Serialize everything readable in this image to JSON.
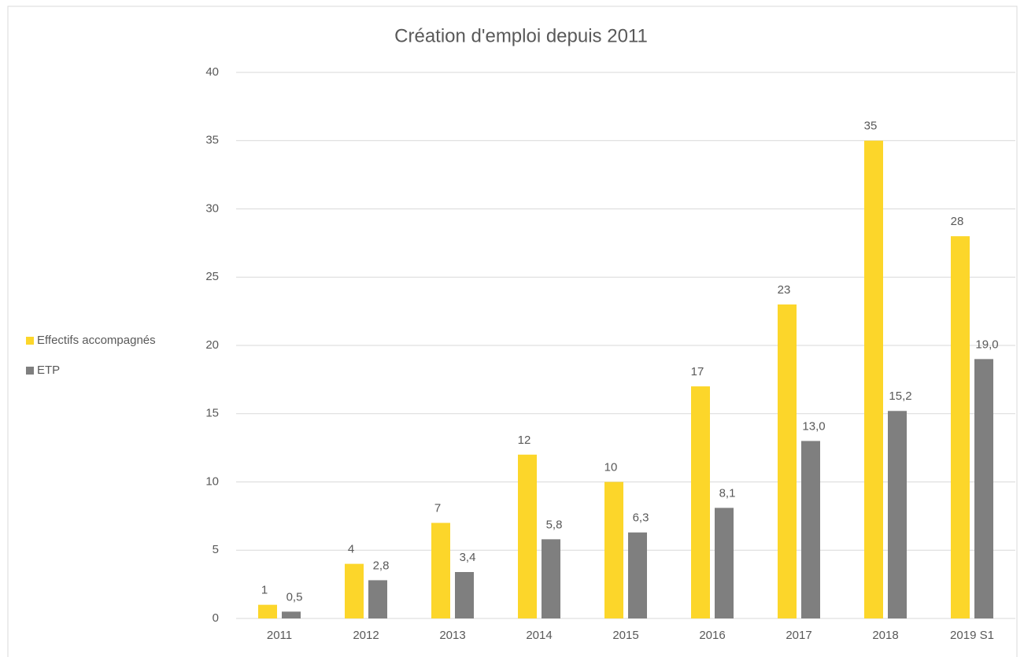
{
  "chart_data": {
    "type": "bar",
    "title": "Création d'emploi depuis 2011",
    "categories": [
      "2011",
      "2012",
      "2013",
      "2014",
      "2015",
      "2016",
      "2017",
      "2018",
      "2019 S1"
    ],
    "series": [
      {
        "name": "Effectifs accompagnés",
        "color": "#fcd62a",
        "values": [
          1,
          4,
          7,
          12,
          10,
          17,
          23,
          35,
          28
        ]
      },
      {
        "name": "ETP",
        "color": "#7f7f7f",
        "values": [
          0.5,
          2.8,
          3.4,
          5.8,
          6.3,
          8.1,
          13.0,
          15.2,
          19.0
        ],
        "value_labels": [
          "0,5",
          "2,8",
          "3,4",
          "5,8",
          "6,3",
          "8,1",
          "13,0",
          "15,2",
          "19,0"
        ]
      }
    ],
    "ylim": [
      0,
      40
    ],
    "yticks": [
      0,
      5,
      10,
      15,
      20,
      25,
      30,
      35,
      40
    ],
    "grid": true,
    "legend": "left"
  }
}
